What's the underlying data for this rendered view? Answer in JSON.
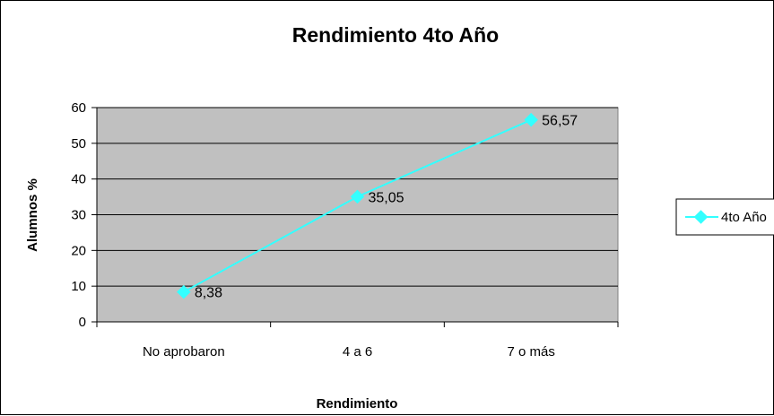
{
  "chart_data": {
    "type": "line",
    "title": "Rendimiento 4to  Año",
    "xlabel": "Rendimiento",
    "ylabel": "Alumnos %",
    "categories": [
      "No aprobaron",
      "4 a 6",
      "7 o más"
    ],
    "series": [
      {
        "name": "4to  Año",
        "values": [
          8.38,
          35.05,
          56.57
        ],
        "labels": [
          "8,38",
          "35,05",
          "56,57"
        ],
        "color": "#33FFFF"
      }
    ],
    "ylim": [
      0,
      60
    ],
    "yticks": [
      0,
      10,
      20,
      30,
      40,
      50,
      60
    ],
    "ytick_labels": [
      "0",
      "10",
      "20",
      "30",
      "40",
      "50",
      "60"
    ],
    "grid": true,
    "plot_background": "#C0C0C0",
    "legend_position": "right"
  }
}
